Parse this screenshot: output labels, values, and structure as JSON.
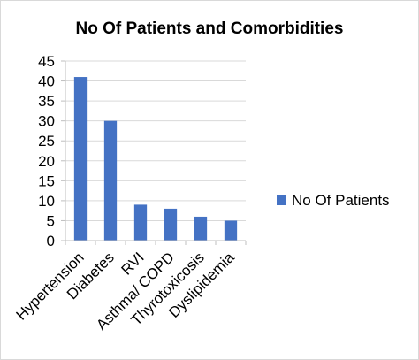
{
  "chart_data": {
    "type": "bar",
    "title": "No Of Patients and Comorbidities",
    "categories": [
      "Hypertension",
      "Diabetes",
      "RVI",
      "Asthma/ COPD",
      "Thyrotoxicosis",
      "Dyslipidemia"
    ],
    "series": [
      {
        "name": "No Of Patients",
        "values": [
          41,
          30,
          9,
          8,
          6,
          5
        ]
      }
    ],
    "ylim": [
      0,
      45
    ],
    "yticks": [
      0,
      5,
      10,
      15,
      20,
      25,
      30,
      35,
      40,
      45
    ],
    "grid": true,
    "legend": "right",
    "colors": {
      "bar": "#4472C4",
      "grid": "#d9d9d9",
      "axis": "#bfbfbf"
    }
  }
}
